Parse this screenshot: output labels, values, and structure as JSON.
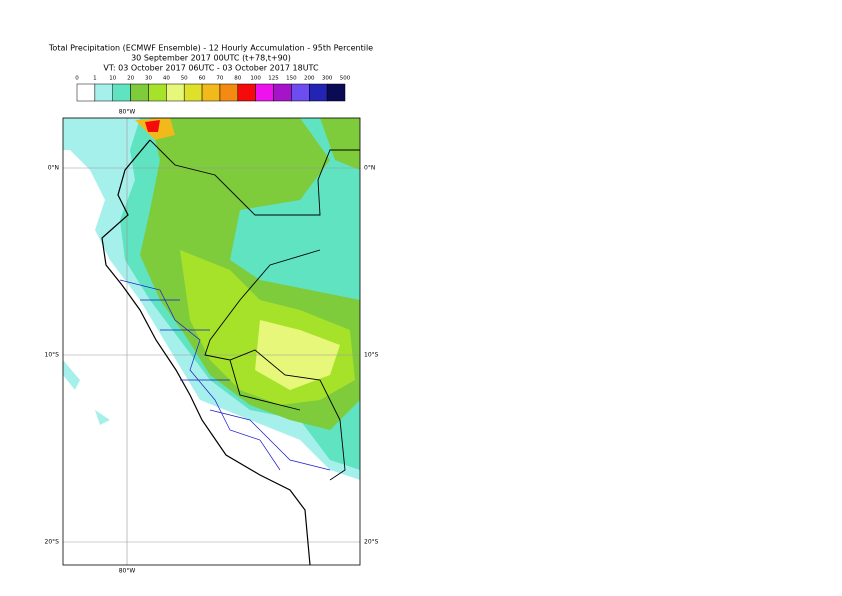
{
  "header": {
    "title": "Total Precipitation (ECMWF Ensemble) - 12 Hourly Accumulation - 95th Percentile",
    "subtitle": "30 September 2017 00UTC (t+78,t+90)",
    "valid_time": "VT: 03 October 2017 06UTC - 03 October 2017 18UTC"
  },
  "legend": {
    "labels": [
      "0",
      "1",
      "10",
      "20",
      "30",
      "40",
      "50",
      "60",
      "70",
      "80",
      "100",
      "125",
      "150",
      "200",
      "300",
      "500"
    ],
    "colors": [
      "#ffffff",
      "#a6f0ec",
      "#5fe3c0",
      "#7ecb3c",
      "#a6e22a",
      "#e6f77a",
      "#dfe02a",
      "#f2b91b",
      "#f58a12",
      "#f50b0b",
      "#ee12ee",
      "#a514c9",
      "#6d4cf0",
      "#2323b4",
      "#0b0b55"
    ]
  },
  "map": {
    "lon_labels": [
      "80°W"
    ],
    "lat_labels": [
      "0°N",
      "10°S",
      "20°S"
    ]
  }
}
